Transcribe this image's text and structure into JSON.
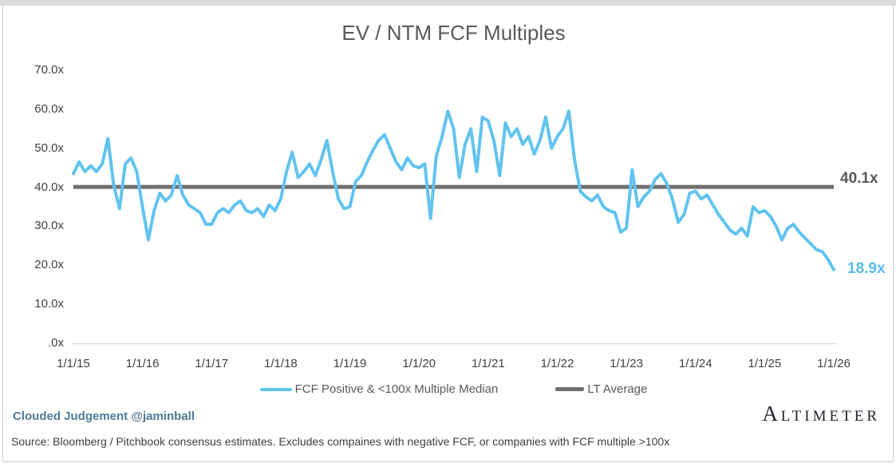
{
  "header": {
    "title": "EV / NTM FCF Multiples"
  },
  "chart_data": {
    "type": "line",
    "title": "EV / NTM FCF Multiples",
    "grid": false,
    "legend_position": "bottom",
    "ylim": [
      0,
      70
    ],
    "y_ticks": [
      {
        "label": ".0x",
        "value": 0
      },
      {
        "label": "10.0x",
        "value": 10
      },
      {
        "label": "20.0x",
        "value": 20
      },
      {
        "label": "30.0x",
        "value": 30
      },
      {
        "label": "40.0x",
        "value": 40
      },
      {
        "label": "50.0x",
        "value": 50
      },
      {
        "label": "60.0x",
        "value": 60
      },
      {
        "label": "70.0x",
        "value": 70
      }
    ],
    "x_tick_labels": [
      "1/1/15",
      "1/1/16",
      "1/1/17",
      "1/1/18",
      "1/1/19",
      "1/1/20",
      "1/1/21",
      "1/1/22",
      "1/1/23",
      "1/1/24",
      "1/1/25",
      "1/1/26"
    ],
    "x_unit": "monthly samples from 1/1/15 to 1/1/26",
    "series": [
      {
        "name": "FCF Positive & <100x Multiple Median",
        "color": "#62C3EF",
        "values": [
          43.5,
          46.5,
          44,
          45.5,
          44,
          46,
          52.5,
          40.5,
          34.5,
          46,
          47.5,
          44,
          35,
          26.5,
          34,
          38.5,
          36.5,
          38,
          43,
          38,
          35.5,
          34.5,
          33.5,
          30.5,
          30.5,
          33.5,
          34.5,
          33.5,
          35.5,
          36.5,
          34,
          33.5,
          34.5,
          32.5,
          35.5,
          34,
          37,
          44,
          49,
          42.5,
          44,
          46,
          43,
          47,
          52,
          44,
          37,
          34.5,
          35,
          41.5,
          43,
          46.5,
          49.5,
          52,
          53.5,
          50,
          46.5,
          44.5,
          47.5,
          45.5,
          45,
          46,
          32,
          48,
          53,
          59.5,
          55,
          42.5,
          51,
          55,
          44,
          58,
          57,
          52,
          43,
          56.5,
          53,
          55,
          51,
          53,
          48.5,
          52,
          58,
          50,
          53,
          55,
          59.5,
          47,
          39,
          37.5,
          36.5,
          38,
          35,
          34,
          33.5,
          28.5,
          29.5,
          44.5,
          35,
          37.5,
          39,
          42,
          43.5,
          41,
          37,
          31,
          33,
          38.5,
          39,
          37,
          38,
          35.5,
          33,
          31,
          29,
          28,
          29.5,
          27.5,
          35,
          33.5,
          34,
          32.5,
          30,
          26.5,
          29.5,
          30.5,
          28.5,
          27,
          25.5,
          24,
          23.5,
          21.5,
          18.9
        ]
      },
      {
        "name": "LT Average",
        "color": "#6F6F6F",
        "values": [
          40.1
        ]
      }
    ],
    "annotations": {
      "lt_average_label": "40.1x",
      "last_value_label": "18.9x"
    }
  },
  "legend": {
    "fcf_label": "FCF Positive & <100x Multiple Median",
    "avg_label": "LT Average"
  },
  "footer": {
    "handle": "Clouded Judgement @jaminball",
    "source": "Source: Bloomberg / Pitchbook consensus estimates. Excludes compaines with negative FCF, or companies with FCF multiple >100x",
    "logo": "Altimeter"
  },
  "colors": {
    "series_blue": "#62C3EF",
    "lt_average_gray": "#6F6F6F",
    "axis_line": "#d9d9d9",
    "title_gray": "#595959",
    "handle_blue": "#4e7a96"
  }
}
